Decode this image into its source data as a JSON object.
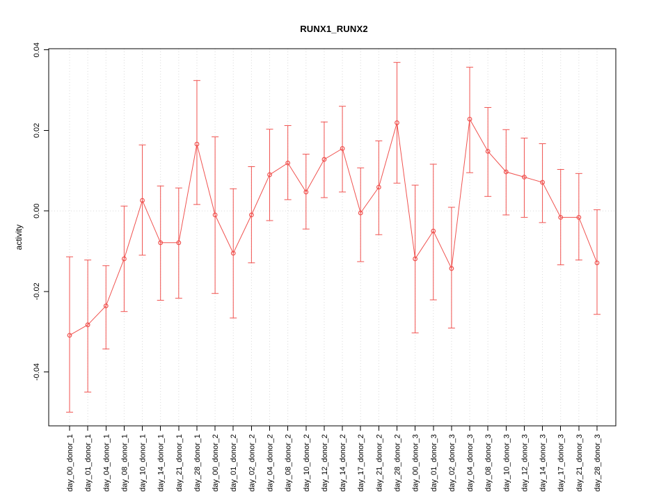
{
  "figure": {
    "background": "#ffffff",
    "axis_color": "#000000"
  },
  "chart_data": {
    "type": "line",
    "title": "RUNX1_RUNX2",
    "ylabel": "activity",
    "xlabel": "",
    "legend": "none",
    "ylim": [
      -0.0534,
      0.0403
    ],
    "yticks": [
      -0.04,
      -0.02,
      0.0,
      0.02,
      0.04
    ],
    "ytick_labels": [
      "-0.04",
      "-0.02",
      "0.00",
      "0.02",
      "0.04"
    ],
    "grid": {
      "vertical_dotted": true,
      "zero_line_dotted": true,
      "color": "#d9d9d9"
    },
    "categories": [
      "day_00_donor_1",
      "day_01_donor_1",
      "day_04_donor_1",
      "day_08_donor_1",
      "day_10_donor_1",
      "day_14_donor_1",
      "day_21_donor_1",
      "day_28_donor_1",
      "day_00_donor_2",
      "day_01_donor_2",
      "day_02_donor_2",
      "day_04_donor_2",
      "day_08_donor_2",
      "day_10_donor_2",
      "day_12_donor_2",
      "day_14_donor_2",
      "day_17_donor_2",
      "day_21_donor_2",
      "day_28_donor_2",
      "day_00_donor_3",
      "day_01_donor_3",
      "day_02_donor_3",
      "day_04_donor_3",
      "day_08_donor_3",
      "day_10_donor_3",
      "day_12_donor_3",
      "day_14_donor_3",
      "day_17_donor_3",
      "day_21_donor_3",
      "day_28_donor_3"
    ],
    "series": [
      {
        "name": "activity",
        "color": "#f0524f",
        "marker": "open-circle",
        "values": [
          -0.0309,
          -0.0283,
          -0.0236,
          -0.0119,
          0.0026,
          -0.0079,
          -0.0079,
          0.0166,
          -0.001,
          -0.0105,
          -0.001,
          0.009,
          0.0119,
          0.0047,
          0.0128,
          0.0155,
          -0.0005,
          0.0059,
          0.0219,
          -0.0119,
          -0.005,
          -0.0143,
          0.0228,
          0.0148,
          0.0097,
          0.0084,
          0.0071,
          -0.0016,
          -0.0016,
          -0.0129
        ],
        "err_low": [
          -0.05,
          -0.045,
          -0.0343,
          -0.025,
          -0.011,
          -0.0222,
          -0.0217,
          0.0016,
          -0.0205,
          -0.0266,
          -0.0129,
          -0.0024,
          0.0028,
          -0.0045,
          0.0033,
          0.0047,
          -0.0126,
          -0.0059,
          0.0069,
          -0.0303,
          -0.0221,
          -0.0291,
          0.0095,
          0.0036,
          -0.001,
          -0.0016,
          -0.0029,
          -0.0134,
          -0.0122,
          -0.0257
        ],
        "err_high": [
          -0.0114,
          -0.0122,
          -0.0136,
          0.0012,
          0.0164,
          0.0062,
          0.0057,
          0.0324,
          0.0184,
          0.0055,
          0.011,
          0.0203,
          0.0212,
          0.0141,
          0.0221,
          0.026,
          0.0107,
          0.0174,
          0.0369,
          0.0064,
          0.0116,
          0.0009,
          0.0357,
          0.0257,
          0.0202,
          0.0181,
          0.0167,
          0.0103,
          0.0093,
          0.0003
        ]
      }
    ]
  }
}
